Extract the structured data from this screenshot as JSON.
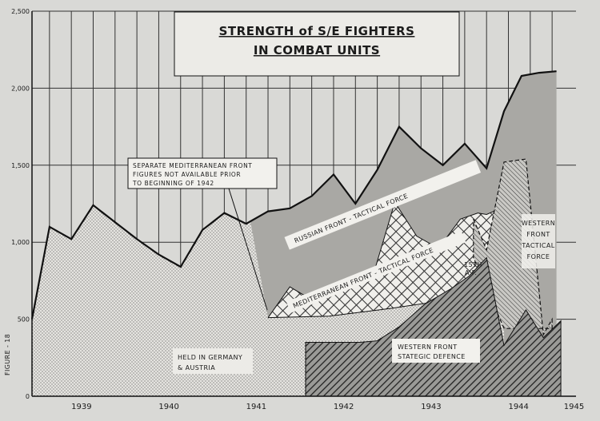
{
  "chart_data": {
    "type": "area",
    "title_line1": "STRENGTH of S/E FIGHTERS",
    "title_line2": "IN COMBAT UNITS",
    "ylabel": "FIGURE - 18",
    "ylim": [
      0,
      2500
    ],
    "y_ticks": [
      "0",
      "500",
      "1,000",
      "1,500",
      "2,000",
      "2,500"
    ],
    "y_tick_values": [
      0,
      500,
      1000,
      1500,
      2000,
      2500
    ],
    "years": [
      "1939",
      "1940",
      "1941",
      "1942",
      "1943",
      "1944",
      "1945"
    ],
    "note_lines": [
      "SEPARATE MEDITERRANEAN FRONT",
      "FIGURES NOT AVAILABLE PRIOR",
      "TO BEGINNING OF 1942"
    ],
    "labels": {
      "germany_1": "HELD IN GERMANY",
      "germany_2": "& AUSTRIA",
      "western_strat_1": "WESTERN FRONT",
      "western_strat_2": "STATEGIC DEFENCE",
      "russian": "RUSSIAN FRONT - TACTICAL FORCE",
      "med": "MEDITERRANEAN FRONT - TACTICAL FORCE",
      "af_1": "15TH",
      "af_2": "A.F.",
      "western_tac_1": "WESTERN",
      "western_tac_2": "FRONT",
      "western_tac_3": "TACTICAL",
      "western_tac_4": "FORCE"
    },
    "series": [
      {
        "key": "western_strategic",
        "x": [
          1941.93,
          1942.35,
          1942.55,
          1942.75,
          1943.0,
          1943.3,
          1943.6,
          1943.8,
          1944.0,
          1944.2,
          1944.45,
          1944.65,
          1944.85
        ],
        "values": [
          350,
          350,
          350,
          360,
          450,
          600,
          700,
          780,
          900,
          330,
          560,
          380,
          490
        ]
      },
      {
        "key": "western_tactical_top",
        "x": [
          1943.85,
          1944.0,
          1944.2,
          1944.45,
          1944.65,
          1944.75
        ],
        "values": [
          1150,
          950,
          1520,
          1540,
          400,
          500
        ]
      },
      {
        "key": "mediterranean_top",
        "x": [
          1941.5,
          1941.75,
          1941.93,
          1942.2,
          1942.45,
          1942.7,
          1942.95,
          1943.2,
          1943.45,
          1943.7,
          1943.9,
          1944.0,
          1944.2
        ],
        "values": [
          510,
          710,
          650,
          700,
          750,
          780,
          1260,
          1040,
          960,
          1150,
          1190,
          1180,
          1230
        ]
      },
      {
        "key": "total",
        "x": [
          1938.8,
          1939.0,
          1939.25,
          1939.5,
          1939.75,
          1940.0,
          1940.25,
          1940.5,
          1940.75,
          1941.0,
          1941.25,
          1941.5,
          1941.75,
          1942.0,
          1942.25,
          1942.5,
          1942.75,
          1943.0,
          1943.25,
          1943.5,
          1943.75,
          1944.0,
          1944.2,
          1944.4,
          1944.6,
          1944.8
        ],
        "values": [
          500,
          1100,
          1020,
          1240,
          1130,
          1020,
          920,
          840,
          1080,
          1190,
          1120,
          1200,
          1220,
          1300,
          1440,
          1250,
          1470,
          1750,
          1610,
          1500,
          1640,
          1480,
          1850,
          2080,
          2100,
          2110
        ]
      }
    ]
  }
}
